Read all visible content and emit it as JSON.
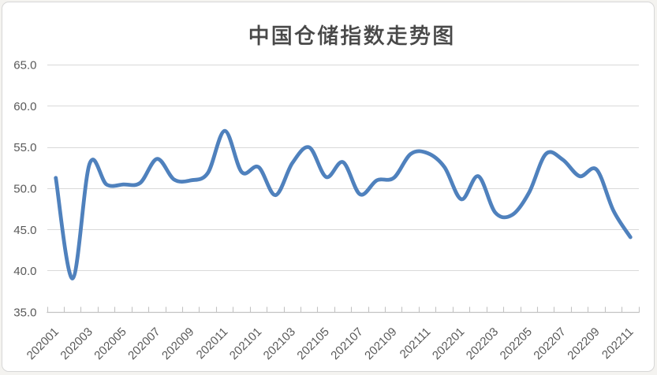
{
  "chart_data": {
    "type": "line",
    "title": "中国仓储指数走势图",
    "series_name": "中国仓储指数",
    "categories": [
      "202001",
      "202002",
      "202003",
      "202004",
      "202005",
      "202006",
      "202007",
      "202008",
      "202009",
      "202010",
      "202011",
      "202012",
      "202101",
      "202102",
      "202103",
      "202104",
      "202105",
      "202106",
      "202107",
      "202108",
      "202109",
      "202110",
      "202111",
      "202112",
      "202201",
      "202202",
      "202203",
      "202204",
      "202205",
      "202206",
      "202207",
      "202208",
      "202209",
      "202210",
      "202211"
    ],
    "values": [
      51.3,
      39.1,
      53.0,
      50.5,
      50.5,
      50.7,
      53.6,
      51.1,
      51.0,
      51.9,
      57.0,
      52.0,
      52.6,
      49.2,
      53.1,
      55.0,
      51.4,
      53.2,
      49.3,
      51.0,
      51.3,
      54.2,
      54.3,
      52.6,
      48.7,
      51.5,
      47.1,
      46.8,
      49.5,
      54.2,
      53.5,
      51.5,
      52.3,
      47.3,
      44.1
    ],
    "x_tick_labels": [
      "202001",
      "202003",
      "202005",
      "202007",
      "202009",
      "202011",
      "202101",
      "202103",
      "202105",
      "202107",
      "202109",
      "202111",
      "202201",
      "202203",
      "202205",
      "202207",
      "202209",
      "202211"
    ],
    "x_label_every": 2,
    "x_label_rotation_deg": -45,
    "ylim": [
      35,
      65
    ],
    "y_tick_step": 5,
    "y_tick_labels": [
      "35.0",
      "40.0",
      "45.0",
      "50.0",
      "55.0",
      "60.0",
      "65.0"
    ],
    "grid": "horizontal",
    "legend": "none",
    "line_smooth": true,
    "colors": {
      "line": "#4f81bd",
      "gridline": "#d9d9d9",
      "axis_line": "#c3c3c3",
      "tick": "#c3c3c3",
      "axis_label": "#595959",
      "title": "#494949",
      "chart_border": "#d7d7d7",
      "chart_background": "#ffffff",
      "page_background": "#f4f3f0"
    }
  }
}
